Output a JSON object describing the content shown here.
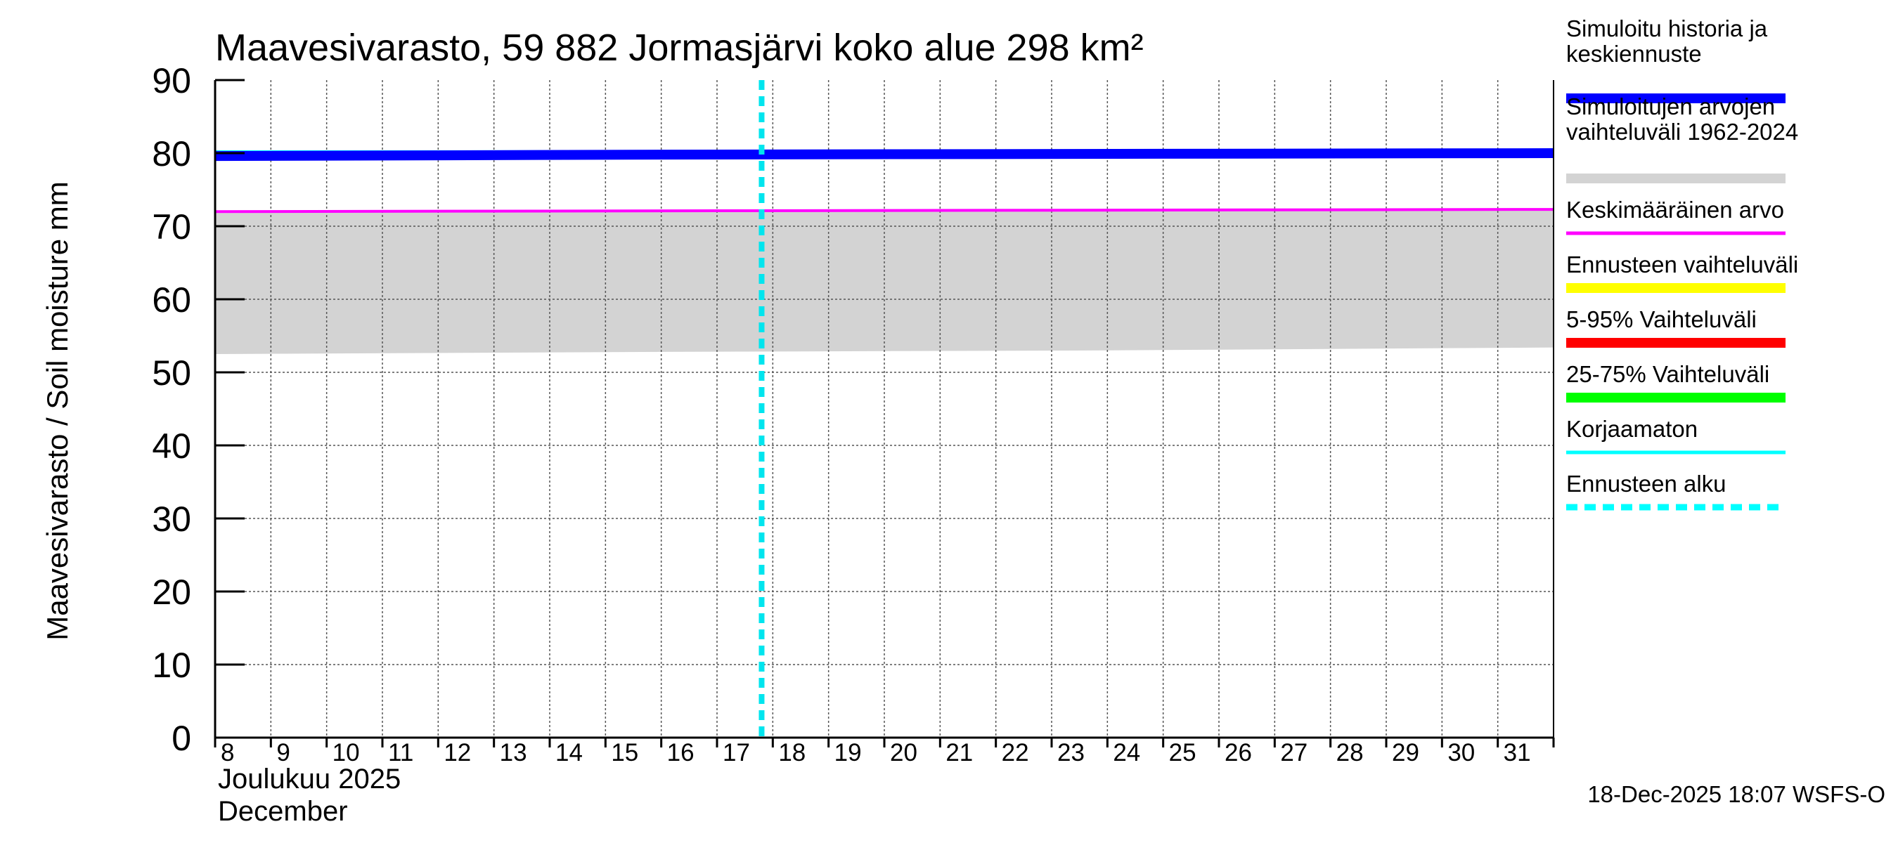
{
  "chart_data": {
    "type": "line",
    "title": "Maavesivarasto, 59 882 Jormasjärvi koko alue 298 km²",
    "ylabel": "Maavesivarasto / Soil moisture   mm",
    "xlabel_fi": "Joulukuu  2025",
    "xlabel_en": "December",
    "ylim": [
      0,
      90
    ],
    "yticks": [
      "0",
      "10",
      "20",
      "30",
      "40",
      "50",
      "60",
      "70",
      "80",
      "90"
    ],
    "x_days": [
      8,
      9,
      10,
      11,
      12,
      13,
      14,
      15,
      16,
      17,
      18,
      19,
      20,
      21,
      22,
      23,
      24,
      25,
      26,
      27,
      28,
      29,
      30,
      31
    ],
    "x_range": [
      8,
      32
    ],
    "forecast_start_day": 17.8,
    "series": [
      {
        "name": "Simuloitujen arvojen vaihteluväli 1962-2024",
        "kind": "band",
        "x": [
          8,
          16,
          24,
          32
        ],
        "lower": [
          52.5,
          52.8,
          53.0,
          53.4
        ],
        "upper": [
          71.8,
          72.0,
          72.1,
          72.2
        ],
        "color": "#d3d3d3"
      },
      {
        "name": "Keskimääräinen arvo",
        "kind": "line",
        "x": [
          8,
          32
        ],
        "values": [
          72.0,
          72.3
        ],
        "color": "#ff00ff"
      },
      {
        "name": "Korjaamaton",
        "kind": "line",
        "x": [
          8,
          16
        ],
        "values": [
          80.2,
          80.2
        ],
        "color": "#00ffff"
      },
      {
        "name": "Simuloitu historia ja keskiennuste",
        "kind": "line",
        "x": [
          8,
          16,
          32
        ],
        "values": [
          79.6,
          79.8,
          80.0
        ],
        "color": "#0000ff"
      }
    ],
    "legend": [
      {
        "label": "Simuloitu historia ja keskiennuste",
        "color": "#0000ff",
        "style": "thick"
      },
      {
        "label": "Simuloitujen arvojen vaihteluväli 1962-2024",
        "color": "#d3d3d3",
        "style": "thick"
      },
      {
        "label": "Keskimääräinen arvo",
        "color": "#ff00ff",
        "style": "thin"
      },
      {
        "label": "Ennusteen vaihteluväli",
        "color": "#ffff00",
        "style": "thick"
      },
      {
        "label": "5-95% Vaihteluväli",
        "color": "#ff0000",
        "style": "thick"
      },
      {
        "label": "25-75% Vaihteluväli",
        "color": "#00ff00",
        "style": "thick"
      },
      {
        "label": "Korjaamaton",
        "color": "#00ffff",
        "style": "thin"
      },
      {
        "label": "Ennusteen alku",
        "color": "#00ffff",
        "style": "dashed"
      }
    ],
    "legend_placement": "right",
    "grid": true
  },
  "timestamp": "18-Dec-2025 18:07 WSFS-O"
}
